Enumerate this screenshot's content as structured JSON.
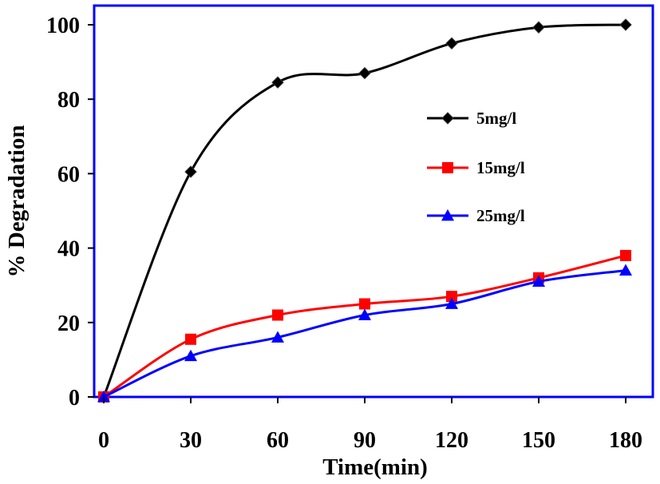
{
  "chart_data": {
    "type": "line",
    "title": "",
    "xlabel": "Time(min)",
    "ylabel": "% Degradation",
    "x": [
      0,
      30,
      60,
      90,
      120,
      150,
      180
    ],
    "xticks": [
      "0",
      "30",
      "60",
      "90",
      "120",
      "150",
      "180"
    ],
    "yticks": [
      "0",
      "20",
      "40",
      "60",
      "80",
      "100"
    ],
    "xlim": [
      0,
      180
    ],
    "ylim": [
      0,
      100
    ],
    "grid": false,
    "legend_position": "right",
    "frame_color": "#0000ff",
    "series": [
      {
        "name": "5mg/l",
        "color": "#000000",
        "marker": "diamond",
        "values": [
          0,
          60.5,
          84.5,
          87,
          95,
          99.3,
          100
        ]
      },
      {
        "name": "15mg/l",
        "color": "#ff0000",
        "marker": "square",
        "values": [
          0,
          15.5,
          22,
          25,
          27,
          32,
          38
        ]
      },
      {
        "name": "25mg/l",
        "color": "#0000ff",
        "marker": "triangle",
        "values": [
          0,
          11,
          16,
          22,
          25,
          31,
          34
        ]
      }
    ]
  }
}
